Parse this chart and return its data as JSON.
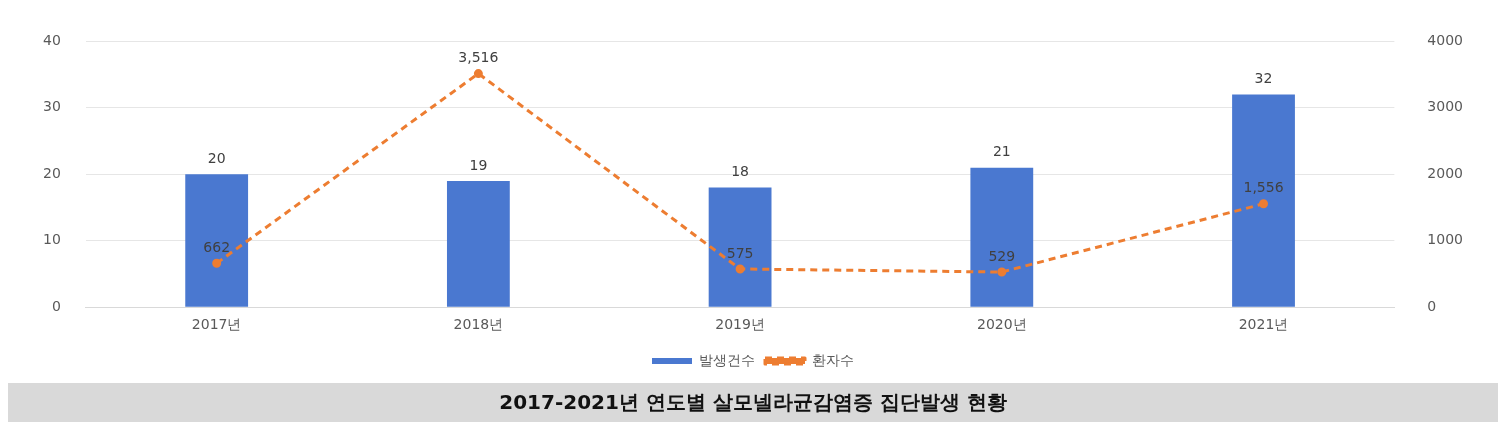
{
  "chart_data": {
    "type": "bar",
    "title": "2017-2021년 연도별 살모넬라균감염증 집단발생 현황",
    "categories": [
      "2017년",
      "2018년",
      "2019년",
      "2020년",
      "2021년"
    ],
    "series": [
      {
        "name": "발생건수",
        "color": "#4a78d0",
        "values": [
          20,
          19,
          18,
          21,
          32
        ]
      },
      {
        "name": "환자수",
        "type": "line",
        "axis": "y2",
        "color": "#ed7d31",
        "values": [
          662,
          3516,
          575,
          529,
          1556
        ],
        "value_labels": [
          "662",
          "3,516",
          "575",
          "529",
          "1,556"
        ],
        "line_style": "dashed",
        "marker": "circle"
      }
    ],
    "ylim": [
      0,
      40
    ],
    "yticks": [
      0,
      10,
      20,
      30,
      40
    ],
    "y2lim": [
      0,
      4000
    ],
    "y2ticks": [
      0,
      1000,
      2000,
      3000,
      4000
    ],
    "grid": "y",
    "legend": "bottom",
    "data_labels": true
  }
}
